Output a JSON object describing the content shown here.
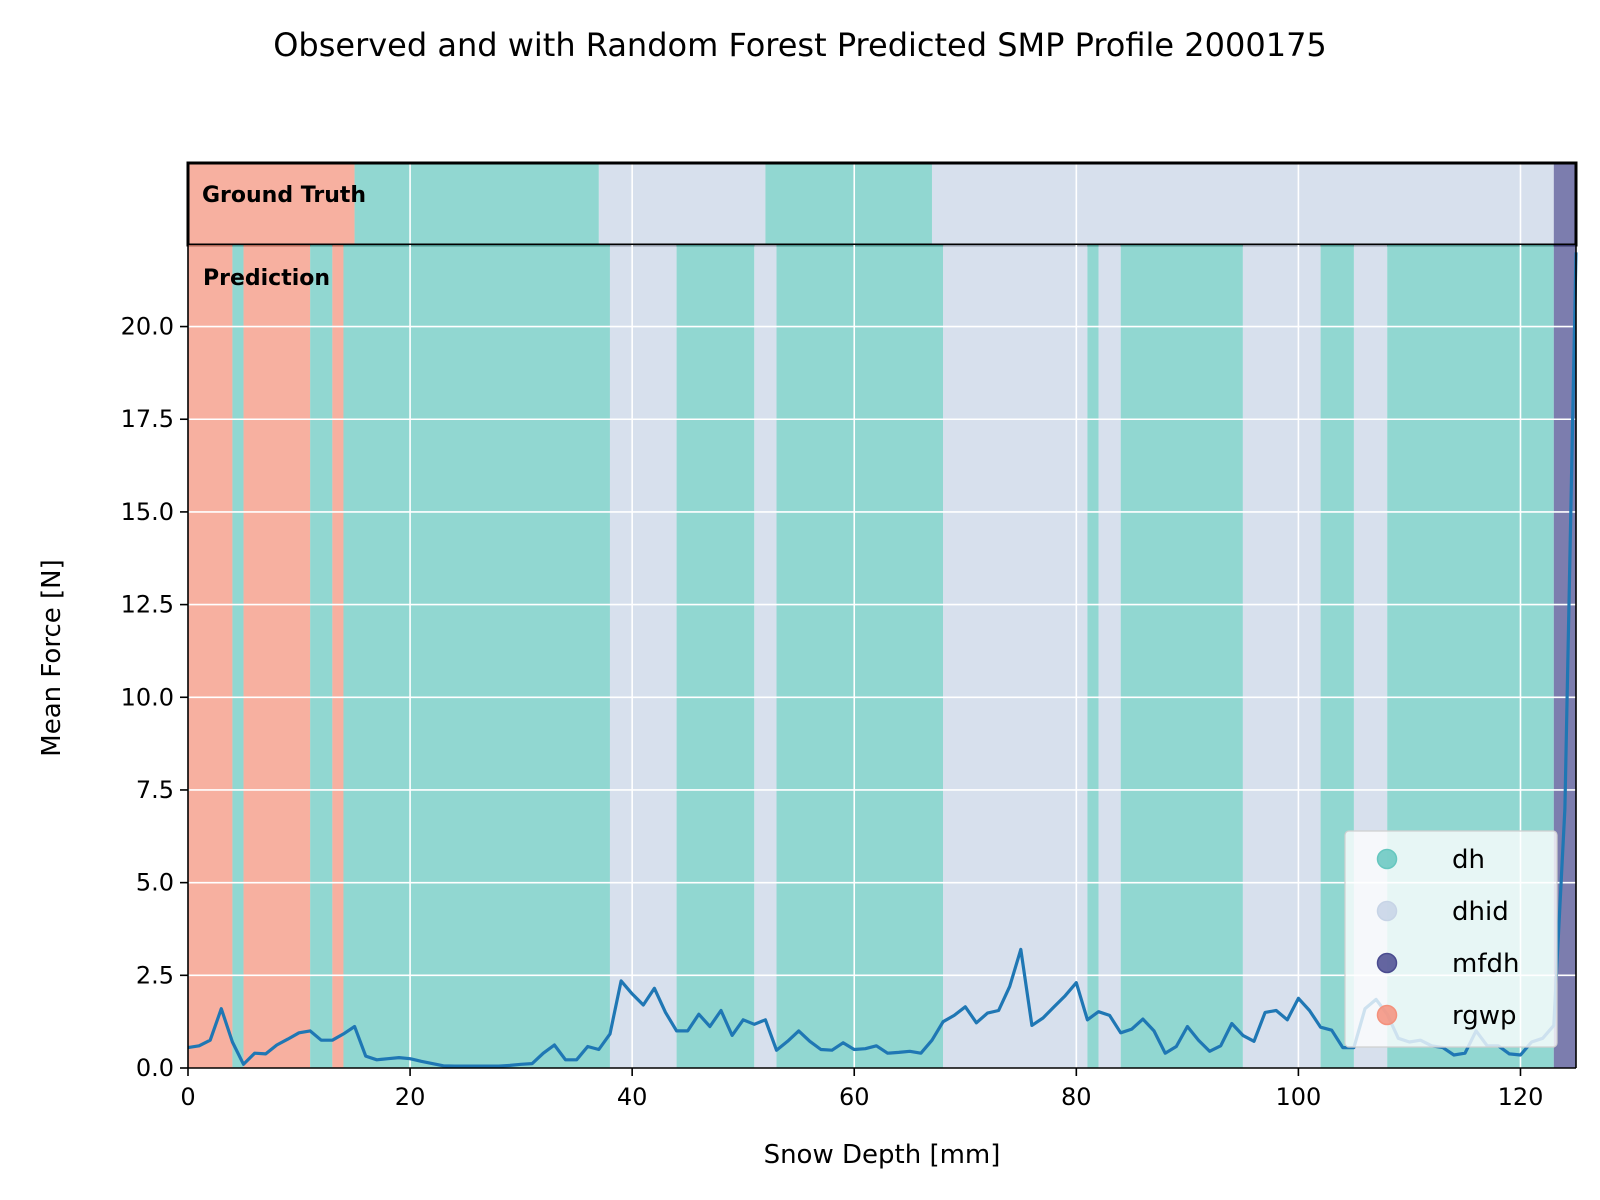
{
  "chart_data": {
    "type": "line",
    "title": "Observed and with Random Forest Predicted SMP Profile 2000175",
    "xlabel": "Snow Depth [mm]",
    "ylabel": "Mean Force [N]",
    "xlim": [
      0,
      125
    ],
    "ylim": [
      0,
      22.2
    ],
    "x_ticks": [
      0,
      20,
      40,
      60,
      80,
      100,
      120
    ],
    "x_tick_labels": [
      "0",
      "20",
      "40",
      "60",
      "80",
      "100",
      "120"
    ],
    "y_ticks": [
      0,
      2.5,
      5,
      7.5,
      10,
      12.5,
      15,
      17.5,
      20
    ],
    "y_tick_labels": [
      "0.0",
      "2.5",
      "5.0",
      "7.5",
      "10.0",
      "12.5",
      "15.0",
      "17.5",
      "20.0"
    ],
    "grid": true,
    "legend_position": "lower-right",
    "panel_labels": {
      "ground_truth": "Ground Truth",
      "prediction": "Prediction"
    },
    "classes": [
      {
        "name": "dh",
        "color": "#66c7bf"
      },
      {
        "name": "dhid",
        "color": "#c7d4e6"
      },
      {
        "name": "mfdh",
        "color": "#4a4b8f"
      },
      {
        "name": "rgwp",
        "color": "#f4917c"
      }
    ],
    "line_color": "#1f77b4",
    "ground_truth_segments": [
      {
        "start": 0,
        "end": 15,
        "class": "rgwp"
      },
      {
        "start": 15,
        "end": 37,
        "class": "dh"
      },
      {
        "start": 37,
        "end": 52,
        "class": "dhid"
      },
      {
        "start": 52,
        "end": 67,
        "class": "dh"
      },
      {
        "start": 67,
        "end": 123,
        "class": "dhid"
      },
      {
        "start": 123,
        "end": 125,
        "class": "mfdh"
      }
    ],
    "prediction_segments": [
      {
        "start": 0,
        "end": 4,
        "class": "rgwp"
      },
      {
        "start": 4,
        "end": 5,
        "class": "dh"
      },
      {
        "start": 5,
        "end": 11,
        "class": "rgwp"
      },
      {
        "start": 11,
        "end": 13,
        "class": "dh"
      },
      {
        "start": 13,
        "end": 14,
        "class": "rgwp"
      },
      {
        "start": 14,
        "end": 38,
        "class": "dh"
      },
      {
        "start": 38,
        "end": 44,
        "class": "dhid"
      },
      {
        "start": 44,
        "end": 51,
        "class": "dh"
      },
      {
        "start": 51,
        "end": 53,
        "class": "dhid"
      },
      {
        "start": 53,
        "end": 68,
        "class": "dh"
      },
      {
        "start": 68,
        "end": 81,
        "class": "dhid"
      },
      {
        "start": 81,
        "end": 82,
        "class": "dh"
      },
      {
        "start": 82,
        "end": 84,
        "class": "dhid"
      },
      {
        "start": 84,
        "end": 95,
        "class": "dh"
      },
      {
        "start": 95,
        "end": 102,
        "class": "dhid"
      },
      {
        "start": 102,
        "end": 105,
        "class": "dh"
      },
      {
        "start": 105,
        "end": 108,
        "class": "dhid"
      },
      {
        "start": 108,
        "end": 123,
        "class": "dh"
      },
      {
        "start": 123,
        "end": 125,
        "class": "mfdh"
      }
    ],
    "series": [
      {
        "x": [
          0,
          1,
          2,
          3,
          4,
          5,
          6,
          7,
          8,
          9,
          10,
          11,
          12,
          13,
          14,
          15,
          16,
          17,
          18,
          19,
          20,
          21,
          22,
          23,
          24,
          25,
          26,
          27,
          28,
          29,
          30,
          31,
          32,
          33,
          34,
          35,
          36,
          37,
          38,
          39,
          40,
          41,
          42,
          43,
          44,
          45,
          46,
          47,
          48,
          49,
          50,
          51,
          52,
          53,
          54,
          55,
          56,
          57,
          58,
          59,
          60,
          61,
          62,
          63,
          64,
          65,
          66,
          67,
          68,
          69,
          70,
          71,
          72,
          73,
          74,
          75,
          76,
          77,
          78,
          79,
          80,
          81,
          82,
          83,
          84,
          85,
          86,
          87,
          88,
          89,
          90,
          91,
          92,
          93,
          94,
          95,
          96,
          97,
          98,
          99,
          100,
          101,
          102,
          103,
          104,
          105,
          106,
          107,
          108,
          109,
          110,
          111,
          112,
          113,
          114,
          115,
          116,
          117,
          118,
          119,
          120,
          121,
          122,
          123,
          124,
          125
        ],
        "values": [
          0.55,
          0.6,
          0.75,
          1.6,
          0.7,
          0.1,
          0.4,
          0.38,
          0.62,
          0.78,
          0.95,
          1.0,
          0.75,
          0.75,
          0.92,
          1.12,
          0.32,
          0.22,
          0.25,
          0.28,
          0.25,
          0.18,
          0.12,
          0.06,
          0.05,
          0.05,
          0.05,
          0.05,
          0.05,
          0.07,
          0.1,
          0.12,
          0.4,
          0.62,
          0.22,
          0.22,
          0.58,
          0.5,
          0.92,
          2.35,
          2.0,
          1.7,
          2.15,
          1.5,
          1.0,
          1.0,
          1.45,
          1.12,
          1.55,
          0.88,
          1.3,
          1.18,
          1.3,
          0.48,
          0.72,
          1.0,
          0.72,
          0.5,
          0.48,
          0.68,
          0.5,
          0.52,
          0.6,
          0.4,
          0.42,
          0.45,
          0.4,
          0.75,
          1.25,
          1.42,
          1.65,
          1.22,
          1.48,
          1.55,
          2.2,
          3.2,
          1.15,
          1.35,
          1.65,
          1.95,
          2.3,
          1.3,
          1.52,
          1.42,
          0.95,
          1.05,
          1.32,
          1.0,
          0.4,
          0.58,
          1.12,
          0.75,
          0.45,
          0.6,
          1.2,
          0.88,
          0.72,
          1.5,
          1.55,
          1.3,
          1.88,
          1.55,
          1.1,
          1.02,
          0.55,
          0.55,
          1.6,
          1.85,
          1.45,
          0.8,
          0.7,
          0.75,
          0.6,
          0.55,
          0.35,
          0.4,
          1.0,
          0.6,
          0.6,
          0.38,
          0.35,
          0.7,
          0.8,
          1.15,
          7.0,
          22.0
        ]
      }
    ]
  }
}
